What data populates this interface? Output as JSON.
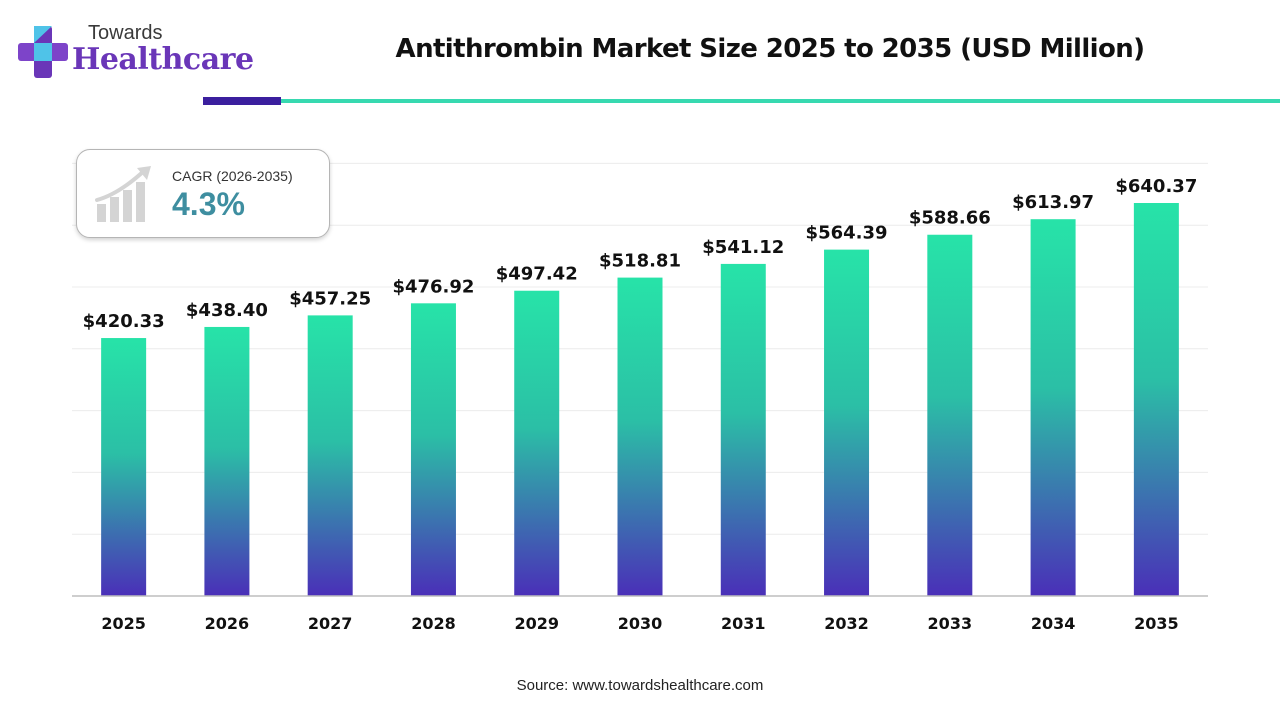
{
  "brand": {
    "top": "Towards",
    "main": "Healthcare"
  },
  "title": "Antithrombin Market Size 2025 to 2035 (USD Million)",
  "cagr": {
    "label": "CAGR (2026-2035)",
    "value": "4.3%"
  },
  "source": "Source: www.towardshealthcare.com",
  "colors": {
    "bar_top": "#27e3a8",
    "bar_bottom": "#4a2fb8",
    "rule_dark": "#3b1f9e",
    "rule_teal": "#37d9b0",
    "brand_purple": "#6a36b8",
    "cagr_value": "#3e8ea0"
  },
  "chart_data": {
    "type": "bar",
    "title": "Antithrombin Market Size 2025 to 2035 (USD Million)",
    "categories": [
      "2025",
      "2026",
      "2027",
      "2028",
      "2029",
      "2030",
      "2031",
      "2032",
      "2033",
      "2034",
      "2035"
    ],
    "values": [
      420.33,
      438.4,
      457.25,
      476.92,
      497.42,
      518.81,
      541.12,
      564.39,
      588.66,
      613.97,
      640.37
    ],
    "data_labels": [
      "$420.33",
      "$438.40",
      "$457.25",
      "$476.92",
      "$497.42",
      "$518.81",
      "$541.12",
      "$564.39",
      "$588.66",
      "$613.97",
      "$640.37"
    ],
    "xlabel": "",
    "ylabel": "",
    "ylim": [
      0,
      700
    ],
    "grid": true,
    "legend": "none"
  }
}
